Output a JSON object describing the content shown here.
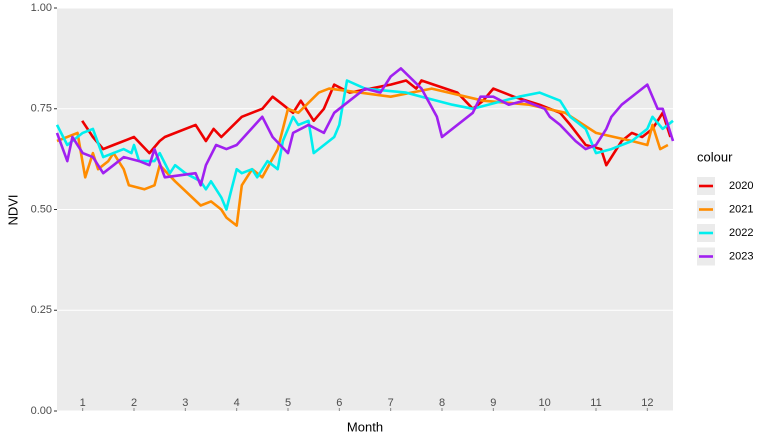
{
  "chart_data": {
    "type": "line",
    "xlabel": "Month",
    "ylabel": "NDVI",
    "legend_title": "colour",
    "legend": "right",
    "grid": true,
    "xlim": [
      0.5,
      12.5
    ],
    "xticks": [
      1,
      2,
      3,
      4,
      5,
      6,
      7,
      8,
      9,
      10,
      11,
      12
    ],
    "ylim": [
      0,
      1
    ],
    "yticks": [
      {
        "value": 0,
        "label": "0.00"
      },
      {
        "value": 0.25,
        "label": "0.25"
      },
      {
        "value": 0.5,
        "label": "0.50"
      },
      {
        "value": 0.75,
        "label": "0.75"
      },
      {
        "value": 1,
        "label": "1.00"
      }
    ],
    "series": [
      {
        "name": "2020",
        "color": "#ee0000",
        "x": [
          0.99,
          1.2,
          1.4,
          1.6,
          2.0,
          2.3,
          2.5,
          2.6,
          3.2,
          3.4,
          3.55,
          3.7,
          4.1,
          4.5,
          4.7,
          4.9,
          5.1,
          5.25,
          5.5,
          5.7,
          5.9,
          6.2,
          6.6,
          7.0,
          7.3,
          7.5,
          7.6,
          8.3,
          8.6,
          8.8,
          9.0,
          9.4,
          9.9,
          10.3,
          10.5,
          10.8,
          11.1,
          11.2,
          11.5,
          11.7,
          11.9,
          12.1,
          12.3,
          12.45
        ],
        "values": [
          0.72,
          0.68,
          0.65,
          0.66,
          0.68,
          0.64,
          0.67,
          0.68,
          0.71,
          0.67,
          0.7,
          0.68,
          0.73,
          0.75,
          0.78,
          0.76,
          0.74,
          0.77,
          0.72,
          0.75,
          0.81,
          0.79,
          0.8,
          0.81,
          0.82,
          0.8,
          0.82,
          0.79,
          0.75,
          0.77,
          0.8,
          0.78,
          0.76,
          0.74,
          0.71,
          0.66,
          0.65,
          0.61,
          0.67,
          0.69,
          0.68,
          0.7,
          0.74,
          0.68
        ]
      },
      {
        "name": "2021",
        "color": "#ff8c00",
        "x": [
          0.5,
          0.9,
          1.05,
          1.2,
          1.3,
          1.5,
          1.6,
          1.8,
          1.9,
          2.2,
          2.4,
          2.5,
          2.8,
          3.3,
          3.5,
          3.7,
          3.8,
          4.0,
          4.1,
          4.3,
          4.5,
          4.8,
          5.0,
          5.2,
          5.6,
          5.8,
          6.4,
          7.0,
          7.8,
          8.8,
          9.7,
          10.4,
          11.0,
          11.7,
          12.0,
          12.1,
          12.25,
          12.4
        ],
        "values": [
          0.67,
          0.69,
          0.58,
          0.64,
          0.6,
          0.62,
          0.64,
          0.6,
          0.56,
          0.55,
          0.56,
          0.61,
          0.57,
          0.51,
          0.52,
          0.5,
          0.48,
          0.46,
          0.56,
          0.6,
          0.58,
          0.65,
          0.75,
          0.74,
          0.79,
          0.8,
          0.79,
          0.78,
          0.8,
          0.77,
          0.76,
          0.74,
          0.69,
          0.67,
          0.66,
          0.71,
          0.65,
          0.66
        ]
      },
      {
        "name": "2022",
        "color": "#00eeee",
        "x": [
          0.5,
          0.7,
          1.0,
          1.2,
          1.4,
          1.8,
          1.95,
          2.0,
          2.1,
          2.4,
          2.5,
          2.7,
          2.8,
          3.0,
          3.3,
          3.4,
          3.5,
          3.7,
          3.8,
          3.9,
          4.0,
          4.1,
          4.3,
          4.4,
          4.6,
          4.8,
          4.9,
          5.1,
          5.2,
          5.4,
          5.5,
          5.9,
          6.0,
          6.15,
          6.5,
          7.3,
          7.6,
          8.2,
          8.6,
          9.5,
          9.9,
          10.3,
          10.5,
          10.8,
          11.0,
          11.3,
          11.7,
          12.0,
          12.1,
          12.3,
          12.5
        ],
        "values": [
          0.71,
          0.66,
          0.69,
          0.7,
          0.63,
          0.65,
          0.64,
          0.66,
          0.62,
          0.62,
          0.64,
          0.59,
          0.61,
          0.59,
          0.57,
          0.55,
          0.57,
          0.53,
          0.5,
          0.55,
          0.6,
          0.59,
          0.6,
          0.58,
          0.62,
          0.6,
          0.67,
          0.73,
          0.71,
          0.72,
          0.64,
          0.68,
          0.71,
          0.82,
          0.8,
          0.79,
          0.78,
          0.76,
          0.75,
          0.78,
          0.79,
          0.77,
          0.73,
          0.7,
          0.64,
          0.65,
          0.67,
          0.7,
          0.73,
          0.7,
          0.72
        ]
      },
      {
        "name": "2023",
        "color": "#a020f0",
        "x": [
          0.5,
          0.7,
          0.8,
          1.0,
          1.2,
          1.4,
          1.6,
          1.8,
          2.1,
          2.3,
          2.4,
          2.6,
          3.2,
          3.3,
          3.4,
          3.6,
          3.8,
          4.0,
          4.5,
          4.7,
          5.0,
          5.1,
          5.4,
          5.7,
          5.9,
          6.1,
          6.5,
          6.8,
          7.0,
          7.2,
          7.6,
          7.9,
          8.0,
          8.6,
          8.75,
          9.0,
          9.3,
          9.6,
          10.0,
          10.1,
          10.3,
          10.6,
          10.8,
          11.0,
          11.2,
          11.3,
          11.5,
          12.0,
          12.2,
          12.3,
          12.4,
          12.5
        ],
        "values": [
          0.69,
          0.62,
          0.68,
          0.64,
          0.63,
          0.59,
          0.61,
          0.63,
          0.62,
          0.61,
          0.65,
          0.58,
          0.59,
          0.56,
          0.61,
          0.66,
          0.65,
          0.66,
          0.73,
          0.68,
          0.64,
          0.69,
          0.71,
          0.69,
          0.74,
          0.76,
          0.8,
          0.79,
          0.83,
          0.85,
          0.8,
          0.73,
          0.68,
          0.74,
          0.78,
          0.78,
          0.76,
          0.77,
          0.75,
          0.73,
          0.71,
          0.67,
          0.65,
          0.66,
          0.7,
          0.73,
          0.76,
          0.81,
          0.75,
          0.75,
          0.71,
          0.67
        ]
      }
    ]
  }
}
